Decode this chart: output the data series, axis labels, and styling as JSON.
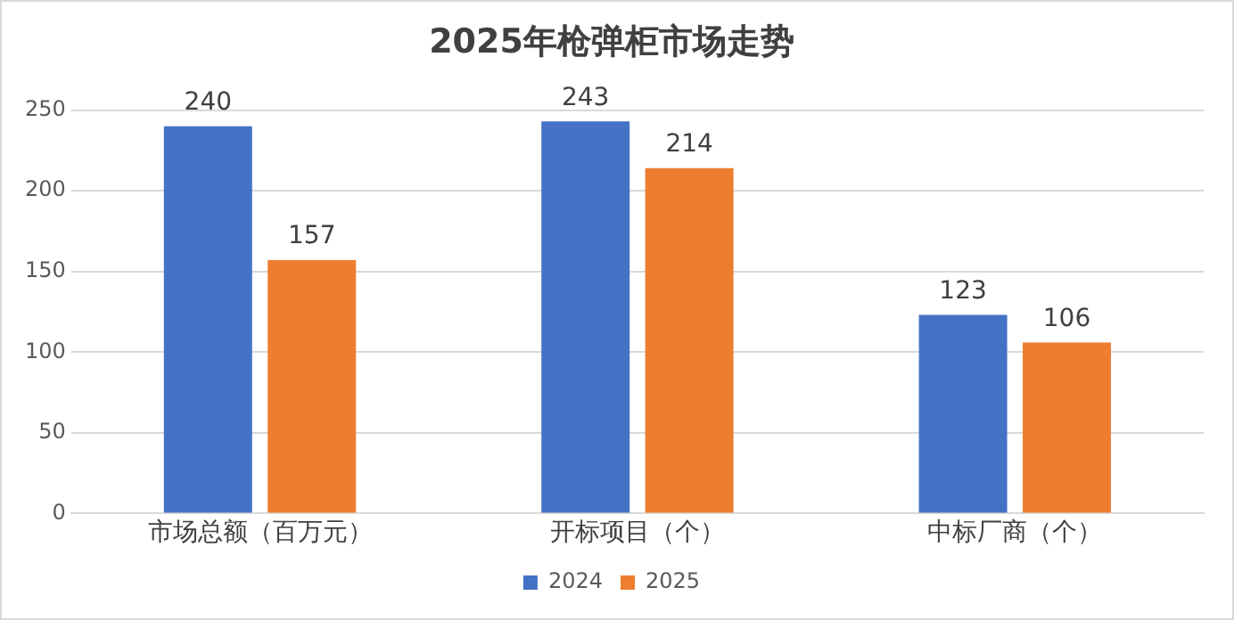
{
  "chart_data": {
    "type": "bar",
    "title": "2025年枪弹柜市场走势",
    "categories": [
      "市场总额（百万元）",
      "开标项目（个）",
      "中标厂商（个）"
    ],
    "series": [
      {
        "name": "2024",
        "color": "#4472c4",
        "values": [
          240,
          243,
          123
        ]
      },
      {
        "name": "2025",
        "color": "#ed7d31",
        "values": [
          157,
          214,
          106
        ]
      }
    ],
    "ylim": [
      0,
      250
    ],
    "yticks": [
      0,
      50,
      100,
      150,
      200,
      250
    ],
    "grid": "y",
    "legend": "bottom",
    "data_labels": true
  }
}
